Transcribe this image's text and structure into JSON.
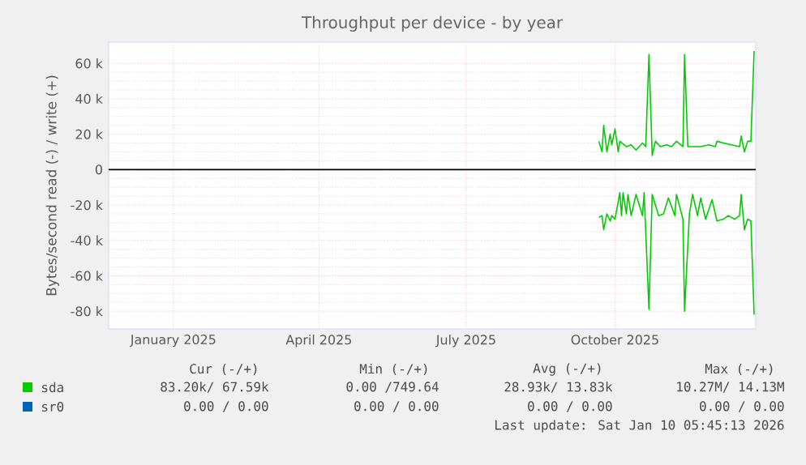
{
  "chart_data": {
    "type": "line",
    "title": "Throughput per device - by year",
    "ylabel": "Bytes/second read (-) / write (+)",
    "xlim": [
      "2024-12-06",
      "2026-01-10"
    ],
    "xticks": [
      {
        "value": "2025-01-15",
        "label": "January 2025"
      },
      {
        "value": "2025-04-15",
        "label": "April 2025"
      },
      {
        "value": "2025-07-15",
        "label": "July 2025"
      },
      {
        "value": "2025-10-15",
        "label": "October 2025"
      }
    ],
    "ylim": [
      -90000,
      72000
    ],
    "yticks": [
      {
        "value": -80000,
        "label": "-80 k"
      },
      {
        "value": -60000,
        "label": "-60 k"
      },
      {
        "value": -40000,
        "label": "-40 k"
      },
      {
        "value": -20000,
        "label": "-20 k"
      },
      0,
      {
        "value": 20000,
        "label": "20 k"
      },
      {
        "value": 40000,
        "label": "40 k"
      },
      {
        "value": 60000,
        "label": "60 k"
      }
    ],
    "grid": true,
    "legend": "bottom",
    "marker": "none",
    "line_style": "solid",
    "ref_lines": [
      {
        "axis": "y",
        "value": 0,
        "color": "#000000"
      }
    ],
    "series": [
      {
        "name": "sda",
        "color": "#00cc00",
        "x": [
          "2025-10-05",
          "2025-10-07",
          "2025-10-08",
          "2025-10-10",
          "2025-10-12",
          "2025-10-13",
          "2025-10-15",
          "2025-10-17",
          "2025-10-18",
          "2025-10-22",
          "2025-10-25",
          "2025-10-28",
          "2025-11-01",
          "2025-11-03",
          "2025-11-05",
          "2025-11-07",
          "2025-11-09",
          "2025-11-12",
          "2025-11-16",
          "2025-11-19",
          "2025-11-22",
          "2025-11-26",
          "2025-11-27",
          "2025-11-29",
          "2025-12-02",
          "2025-12-07",
          "2025-12-12",
          "2025-12-16",
          "2025-12-17",
          "2025-12-21",
          "2025-12-26",
          "2025-12-31",
          "2026-01-01",
          "2026-01-03",
          "2026-01-05",
          "2026-01-07",
          "2026-01-09"
        ],
        "values": [
          16000,
          10000,
          25000,
          10000,
          20000,
          14000,
          23000,
          10000,
          16000,
          13000,
          14000,
          11000,
          15000,
          13000,
          65000,
          8000,
          16000,
          13000,
          14000,
          13000,
          16000,
          13000,
          65000,
          13000,
          13000,
          13000,
          14000,
          13000,
          16000,
          15000,
          14000,
          13000,
          19000,
          10000,
          16000,
          16000,
          67000
        ]
      },
      {
        "color": "#00cc00",
        "x": [
          "2025-10-05",
          "2025-10-07",
          "2025-10-08",
          "2025-10-10",
          "2025-10-12",
          "2025-10-13",
          "2025-10-15",
          "2025-10-18",
          "2025-10-19",
          "2025-10-20",
          "2025-10-22",
          "2025-10-23",
          "2025-10-25",
          "2025-10-28",
          "2025-11-01",
          "2025-11-02",
          "2025-11-05",
          "2025-11-07",
          "2025-11-11",
          "2025-11-14",
          "2025-11-17",
          "2025-11-21",
          "2025-11-22",
          "2025-11-26",
          "2025-11-27",
          "2025-11-30",
          "2025-12-02",
          "2025-12-05",
          "2025-12-07",
          "2025-12-10",
          "2025-12-14",
          "2025-12-17",
          "2025-12-21",
          "2025-12-24",
          "2025-12-28",
          "2025-12-31",
          "2026-01-01",
          "2026-01-03",
          "2026-01-05",
          "2026-01-07",
          "2026-01-09"
        ],
        "values": [
          -27000,
          -26000,
          -34000,
          -25000,
          -29000,
          -26000,
          -28000,
          -13000,
          -26000,
          -13000,
          -25000,
          -14000,
          -26000,
          -14000,
          -26000,
          -13000,
          -79000,
          -14000,
          -26000,
          -25000,
          -16000,
          -26000,
          -14000,
          -28000,
          -80000,
          -25000,
          -14000,
          -26000,
          -16000,
          -28000,
          -17000,
          -29000,
          -28000,
          -26000,
          -28000,
          -26000,
          -14000,
          -34000,
          -28000,
          -29000,
          -82000
        ]
      },
      {
        "name": "sr0",
        "color": "#0066b3"
      }
    ],
    "annotations": [
      "Cur (-/+)",
      "Min (-/+)",
      "Avg (-/+)",
      "Max (-/+)",
      "83.20k/ 67.59k",
      "0.00 /749.64",
      "28.93k/ 13.83k",
      "10.27M/ 14.13M",
      "0.00 /  0.00",
      "0.00 /  0.00",
      "0.00 /  0.00",
      "0.00 /  0.00",
      "Last update: Sat Jan 10 05:45:13 2026"
    ]
  }
}
